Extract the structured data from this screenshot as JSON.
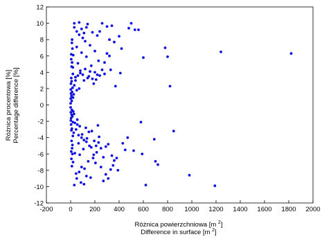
{
  "chart_data": {
    "type": "scatter",
    "xlabel_lines": [
      "Różnica powierzchniowa [m 2]",
      "Difference in surface [m 2]"
    ],
    "xlabel": {
      "line1_main": "Różnica powierzchniowa [m ",
      "line1_sup": "2",
      "line1_end": "]",
      "line2_main": "Difference in surface [m ",
      "line2_sup": "2",
      "line2_end": "]"
    },
    "ylabel": {
      "line1": "Różnica procentowa [%]",
      "line2": "Percentage difference [%]"
    },
    "xlim": [
      -200,
      2000
    ],
    "ylim": [
      -12,
      12
    ],
    "xticks": [
      -200,
      0,
      200,
      400,
      600,
      800,
      1000,
      1200,
      1400,
      1600,
      1800,
      2000
    ],
    "yticks": [
      -12,
      -10,
      -8,
      -6,
      -4,
      -2,
      0,
      2,
      4,
      6,
      8,
      10,
      12
    ],
    "grid": false,
    "legend": "none",
    "marker_color": "#1010e0",
    "points": [
      [
        1820,
        6.3
      ],
      [
        1240,
        6.5
      ],
      [
        1190,
        -9.9
      ],
      [
        980,
        -8.6
      ],
      [
        850,
        -3.2
      ],
      [
        820,
        2.3
      ],
      [
        800,
        5.9
      ],
      [
        780,
        7.0
      ],
      [
        720,
        -7.3
      ],
      [
        700,
        -6.9
      ],
      [
        690,
        -4.2
      ],
      [
        620,
        -9.8
      ],
      [
        600,
        5.8
      ],
      [
        590,
        -6.0
      ],
      [
        580,
        -2.1
      ],
      [
        560,
        9.2
      ],
      [
        530,
        9.2
      ],
      [
        520,
        -5.6
      ],
      [
        500,
        10.0
      ],
      [
        480,
        9.4
      ],
      [
        470,
        -4.0
      ],
      [
        450,
        -5.5
      ],
      [
        430,
        -4.7
      ],
      [
        420,
        6.9
      ],
      [
        410,
        3.9
      ],
      [
        400,
        8.4
      ],
      [
        390,
        -8.0
      ],
      [
        380,
        -6.5
      ],
      [
        370,
        2.3
      ],
      [
        360,
        7.7
      ],
      [
        350,
        -7.4
      ],
      [
        340,
        -6.2
      ],
      [
        330,
        4.3
      ],
      [
        320,
        6.0
      ],
      [
        310,
        -4.8
      ],
      [
        300,
        9.6
      ],
      [
        290,
        -5.1
      ],
      [
        280,
        3.8
      ],
      [
        270,
        -9.3
      ],
      [
        260,
        10.0
      ],
      [
        250,
        -7.6
      ],
      [
        240,
        9.0
      ],
      [
        235,
        -3.9
      ],
      [
        230,
        5.4
      ],
      [
        225,
        -2.5
      ],
      [
        220,
        8.5
      ],
      [
        215,
        -5.8
      ],
      [
        210,
        3.1
      ],
      [
        205,
        -7.1
      ],
      [
        200,
        6.6
      ],
      [
        195,
        -4.4
      ],
      [
        190,
        2.6
      ],
      [
        185,
        -6.5
      ],
      [
        180,
        8.9
      ],
      [
        175,
        -3.2
      ],
      [
        170,
        4.8
      ],
      [
        165,
        -8.9
      ],
      [
        160,
        7.3
      ],
      [
        155,
        -5.0
      ],
      [
        150,
        3.5
      ],
      [
        145,
        -6.9
      ],
      [
        140,
        9.9
      ],
      [
        135,
        -4.1
      ],
      [
        130,
        5.9
      ],
      [
        125,
        -2.8
      ],
      [
        120,
        7.8
      ],
      [
        115,
        -7.8
      ],
      [
        110,
        3.0
      ],
      [
        105,
        -5.4
      ],
      [
        100,
        8.2
      ],
      [
        95,
        -3.6
      ],
      [
        90,
        6.4
      ],
      [
        85,
        -9.5
      ],
      [
        80,
        4.2
      ],
      [
        75,
        -6.1
      ],
      [
        70,
        10.1
      ],
      [
        65,
        -4.7
      ],
      [
        60,
        5.1
      ],
      [
        55,
        -2.4
      ],
      [
        50,
        7.1
      ],
      [
        45,
        -8.4
      ],
      [
        40,
        3.4
      ],
      [
        35,
        -5.9
      ],
      [
        30,
        9.5
      ],
      [
        25,
        -3.4
      ],
      [
        22,
        6.1
      ],
      [
        20,
        -7.0
      ],
      [
        18,
        4.6
      ],
      [
        15,
        -4.9
      ],
      [
        12,
        8.0
      ],
      [
        10,
        -2.9
      ],
      [
        8,
        2.9
      ],
      [
        6,
        -6.6
      ],
      [
        5,
        5.6
      ],
      [
        4,
        -1.6
      ],
      [
        3,
        1.4
      ],
      [
        2,
        -0.9
      ],
      [
        1,
        0.8
      ],
      [
        0,
        0.2
      ],
      [
        0,
        -0.3
      ],
      [
        1,
        1.9
      ],
      [
        2,
        -1.9
      ],
      [
        3,
        2.6
      ],
      [
        4,
        -2.4
      ],
      [
        5,
        3.3
      ],
      [
        6,
        -3.1
      ],
      [
        7,
        1.1
      ],
      [
        8,
        -1.2
      ],
      [
        9,
        0.5
      ],
      [
        10,
        -0.6
      ],
      [
        12,
        1.6
      ],
      [
        14,
        -1.4
      ],
      [
        16,
        2.1
      ],
      [
        18,
        -2.1
      ],
      [
        20,
        0.9
      ],
      [
        22,
        -0.8
      ],
      [
        25,
        1.3
      ],
      [
        28,
        -1.1
      ],
      [
        30,
        2.4
      ],
      [
        35,
        -2.2
      ],
      [
        40,
        3.0
      ],
      [
        45,
        -3.0
      ],
      [
        50,
        1.8
      ],
      [
        55,
        -1.8
      ],
      [
        60,
        3.6
      ],
      [
        65,
        -3.7
      ],
      [
        70,
        2.0
      ],
      [
        75,
        -2.6
      ],
      [
        80,
        3.9
      ],
      [
        90,
        -4.0
      ],
      [
        100,
        3.7
      ],
      [
        110,
        -4.3
      ],
      [
        120,
        4.4
      ],
      [
        130,
        -4.5
      ],
      [
        140,
        3.3
      ],
      [
        150,
        -3.3
      ],
      [
        160,
        4.1
      ],
      [
        170,
        -5.2
      ],
      [
        180,
        3.2
      ],
      [
        190,
        -6.1
      ],
      [
        200,
        4.0
      ],
      [
        210,
        -5.0
      ],
      [
        220,
        3.7
      ],
      [
        230,
        -4.6
      ],
      [
        240,
        3.6
      ],
      [
        250,
        -5.3
      ],
      [
        260,
        4.3
      ],
      [
        270,
        -6.4
      ],
      [
        280,
        5.2
      ],
      [
        290,
        -8.5
      ],
      [
        300,
        6.3
      ],
      [
        310,
        -9.0
      ],
      [
        320,
        8.0
      ],
      [
        330,
        -7.9
      ],
      [
        340,
        9.7
      ],
      [
        360,
        -6.8
      ],
      [
        30,
        -9.8
      ],
      [
        50,
        -9.0
      ],
      [
        70,
        -8.2
      ],
      [
        90,
        -7.6
      ],
      [
        110,
        -9.7
      ],
      [
        130,
        -8.7
      ],
      [
        30,
        10.0
      ],
      [
        50,
        9.0
      ],
      [
        70,
        8.6
      ],
      [
        90,
        9.3
      ],
      [
        110,
        8.8
      ],
      [
        130,
        9.5
      ],
      [
        15,
        6.9
      ],
      [
        15,
        -6.0
      ],
      [
        10,
        7.6
      ],
      [
        10,
        -7.5
      ],
      [
        5,
        6.2
      ],
      [
        5,
        -5.7
      ],
      [
        8,
        4.7
      ],
      [
        8,
        -4.4
      ],
      [
        12,
        5.2
      ],
      [
        12,
        -5.3
      ],
      [
        18,
        3.8
      ],
      [
        18,
        -3.8
      ]
    ]
  }
}
